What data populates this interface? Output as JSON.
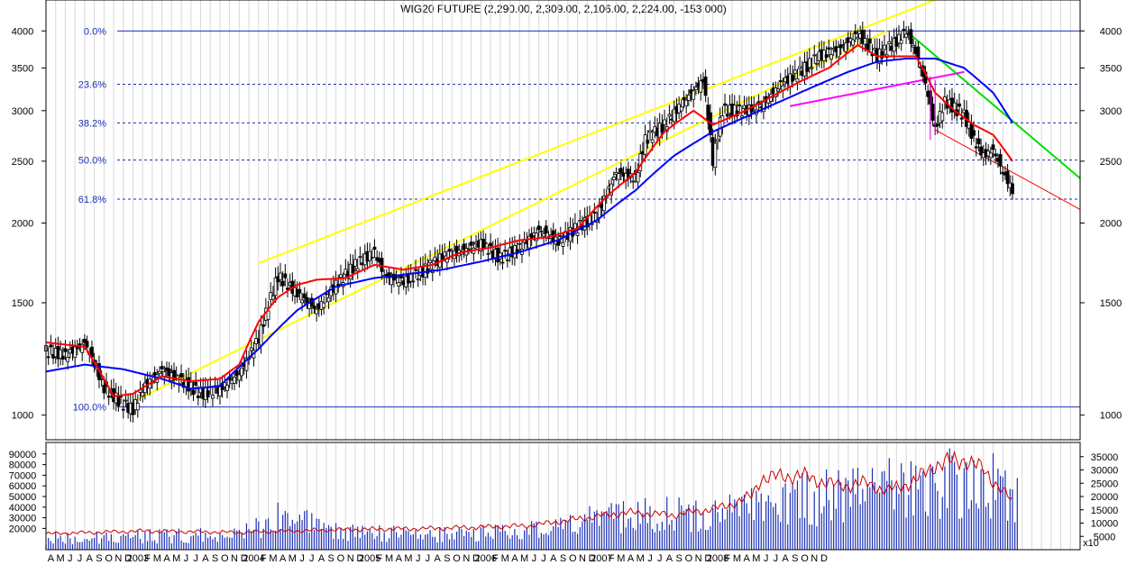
{
  "chart_data": {
    "type": "candlestick",
    "title": "WIG20 FUTURE (2,290.00, 2,309.00, 2,106.00, 2,224.00, -153.000)",
    "price_axis": {
      "scale": "log",
      "ylim": [
        930,
        4400
      ],
      "ticks": [
        "4000",
        "3500",
        "3000",
        "2500",
        "2000",
        "1500",
        "1000"
      ]
    },
    "volume_axis_left": {
      "ylim": [
        0,
        100000
      ],
      "ticks": [
        "90000",
        "80000",
        "70000",
        "60000",
        "50000",
        "40000",
        "30000",
        "20000"
      ]
    },
    "volume_axis_right": {
      "ylim": [
        0,
        40000
      ],
      "ticks": [
        "35000",
        "30000",
        "25000",
        "20000",
        "15000",
        "10000",
        "5000"
      ],
      "multiplier_label": "x10"
    },
    "fibonacci_levels": [
      {
        "label": "0.0%",
        "value": 4000,
        "style": "solid"
      },
      {
        "label": "23.6%",
        "value": 3300,
        "style": "dashed"
      },
      {
        "label": "38.2%",
        "value": 2870,
        "style": "dashed"
      },
      {
        "label": "50.0%",
        "value": 2510,
        "style": "dashed"
      },
      {
        "label": "61.8%",
        "value": 2180,
        "style": "dashed"
      },
      {
        "label": "100.0%",
        "value": 1030,
        "style": "solid"
      }
    ],
    "x_axis": {
      "months": [
        "A",
        "M",
        "J",
        "J",
        "A",
        "S",
        "O",
        "N",
        "D",
        "2003",
        "F",
        "M",
        "A",
        "M",
        "J",
        "J",
        "A",
        "S",
        "O",
        "N",
        "D",
        "2004",
        "F",
        "M",
        "A",
        "M",
        "J",
        "J",
        "A",
        "S",
        "O",
        "N",
        "D",
        "2005",
        "F",
        "M",
        "A",
        "M",
        "J",
        "J",
        "A",
        "S",
        "O",
        "N",
        "D",
        "2006",
        "F",
        "M",
        "A",
        "M",
        "J",
        "J",
        "A",
        "S",
        "O",
        "N",
        "D",
        "2007",
        "F",
        "M",
        "A",
        "M",
        "J",
        "J",
        "A",
        "S",
        "O",
        "N",
        "D",
        "2008",
        "F",
        "M",
        "A",
        "M",
        "J",
        "J",
        "A",
        "S",
        "O",
        "N",
        "D"
      ],
      "year_labels": [
        "2003",
        "2004",
        "2005",
        "2006",
        "2007",
        "2008"
      ]
    },
    "price_path": [
      [
        0,
        1260
      ],
      [
        2,
        1240
      ],
      [
        4,
        1300
      ],
      [
        6,
        1100
      ],
      [
        8,
        1040
      ],
      [
        9,
        1020
      ],
      [
        10,
        1100
      ],
      [
        12,
        1180
      ],
      [
        14,
        1130
      ],
      [
        16,
        1080
      ],
      [
        18,
        1100
      ],
      [
        20,
        1160
      ],
      [
        22,
        1320
      ],
      [
        24,
        1650
      ],
      [
        26,
        1550
      ],
      [
        28,
        1460
      ],
      [
        30,
        1600
      ],
      [
        32,
        1720
      ],
      [
        34,
        1800
      ],
      [
        35,
        1650
      ],
      [
        37,
        1620
      ],
      [
        39,
        1680
      ],
      [
        41,
        1770
      ],
      [
        43,
        1810
      ],
      [
        45,
        1860
      ],
      [
        47,
        1760
      ],
      [
        49,
        1830
      ],
      [
        51,
        1950
      ],
      [
        53,
        1870
      ],
      [
        55,
        1970
      ],
      [
        57,
        2050
      ],
      [
        59,
        2400
      ],
      [
        61,
        2350
      ],
      [
        62,
        2700
      ],
      [
        64,
        2850
      ],
      [
        66,
        3100
      ],
      [
        68,
        3350
      ],
      [
        69,
        2500
      ],
      [
        70,
        3000
      ],
      [
        72,
        3000
      ],
      [
        74,
        3050
      ],
      [
        76,
        3300
      ],
      [
        78,
        3450
      ],
      [
        80,
        3650
      ],
      [
        82,
        3750
      ],
      [
        84,
        3950
      ],
      [
        86,
        3650
      ],
      [
        88,
        3850
      ],
      [
        89,
        4000
      ],
      [
        90,
        3700
      ],
      [
        91,
        3300
      ],
      [
        92,
        2800
      ],
      [
        93,
        3100
      ],
      [
        95,
        2950
      ],
      [
        96,
        2700
      ],
      [
        97,
        2550
      ],
      [
        98,
        2600
      ],
      [
        99,
        2400
      ],
      [
        100,
        2250
      ]
    ],
    "ma_red": [
      [
        0,
        1300
      ],
      [
        4,
        1280
      ],
      [
        7,
        1070
      ],
      [
        9,
        1080
      ],
      [
        12,
        1150
      ],
      [
        15,
        1130
      ],
      [
        18,
        1140
      ],
      [
        20,
        1200
      ],
      [
        22,
        1400
      ],
      [
        24,
        1530
      ],
      [
        26,
        1600
      ],
      [
        28,
        1630
      ],
      [
        31,
        1640
      ],
      [
        34,
        1720
      ],
      [
        37,
        1690
      ],
      [
        40,
        1720
      ],
      [
        43,
        1800
      ],
      [
        46,
        1830
      ],
      [
        49,
        1880
      ],
      [
        52,
        1900
      ],
      [
        55,
        1960
      ],
      [
        58,
        2200
      ],
      [
        61,
        2400
      ],
      [
        64,
        2780
      ],
      [
        67,
        3000
      ],
      [
        69,
        2850
      ],
      [
        72,
        2980
      ],
      [
        75,
        3150
      ],
      [
        78,
        3330
      ],
      [
        81,
        3500
      ],
      [
        84,
        3800
      ],
      [
        86,
        3650
      ],
      [
        88,
        3650
      ],
      [
        90,
        3650
      ],
      [
        92,
        3200
      ],
      [
        94,
        3000
      ],
      [
        96,
        2850
      ],
      [
        98,
        2750
      ],
      [
        100,
        2500
      ]
    ],
    "ma_blue": [
      [
        0,
        1170
      ],
      [
        4,
        1200
      ],
      [
        8,
        1180
      ],
      [
        12,
        1140
      ],
      [
        15,
        1100
      ],
      [
        18,
        1110
      ],
      [
        22,
        1270
      ],
      [
        26,
        1460
      ],
      [
        30,
        1590
      ],
      [
        34,
        1640
      ],
      [
        37,
        1660
      ],
      [
        41,
        1690
      ],
      [
        45,
        1740
      ],
      [
        49,
        1800
      ],
      [
        53,
        1880
      ],
      [
        57,
        2020
      ],
      [
        61,
        2250
      ],
      [
        65,
        2550
      ],
      [
        69,
        2780
      ],
      [
        73,
        2960
      ],
      [
        77,
        3150
      ],
      [
        80,
        3300
      ],
      [
        83,
        3450
      ],
      [
        86,
        3580
      ],
      [
        89,
        3620
      ],
      [
        92,
        3620
      ],
      [
        95,
        3500
      ],
      [
        98,
        3200
      ],
      [
        100,
        2870
      ]
    ],
    "volume_bars_note": "blue bars, rising from ~15000 (2002) to ~50000-90000 (2007-2008)",
    "volume_levels": [
      [
        0,
        12000
      ],
      [
        10,
        14000
      ],
      [
        20,
        16000
      ],
      [
        22,
        25000
      ],
      [
        24,
        35000
      ],
      [
        30,
        18000
      ],
      [
        40,
        15000
      ],
      [
        50,
        20000
      ],
      [
        56,
        30000
      ],
      [
        62,
        40000
      ],
      [
        68,
        35000
      ],
      [
        75,
        45000
      ],
      [
        80,
        55000
      ],
      [
        85,
        60000
      ],
      [
        90,
        65000
      ],
      [
        94,
        70000
      ],
      [
        97,
        60000
      ],
      [
        99,
        75000
      ],
      [
        100,
        50000
      ]
    ],
    "open_interest": [
      [
        0,
        6000
      ],
      [
        10,
        7000
      ],
      [
        20,
        6500
      ],
      [
        30,
        7500
      ],
      [
        40,
        8000
      ],
      [
        50,
        9000
      ],
      [
        56,
        12000
      ],
      [
        60,
        14000
      ],
      [
        65,
        13000
      ],
      [
        70,
        16000
      ],
      [
        73,
        20000
      ],
      [
        74,
        27000
      ],
      [
        78,
        28000
      ],
      [
        80,
        26000
      ],
      [
        82,
        24000
      ],
      [
        85,
        25000
      ],
      [
        87,
        22000
      ],
      [
        90,
        26000
      ],
      [
        92,
        32000
      ],
      [
        95,
        34000
      ],
      [
        97,
        30000
      ],
      [
        99,
        22000
      ],
      [
        100,
        18000
      ]
    ],
    "trendlines": [
      {
        "color": "#ffff00",
        "from": [
          9,
          1050
        ],
        "to": [
          87,
          4000
        ]
      },
      {
        "color": "#ffff00",
        "from": [
          22,
          1730
        ],
        "to": [
          92,
          4500
        ]
      },
      {
        "color": "#00dd00",
        "from": [
          89,
          4000
        ],
        "to": [
          107,
          2350
        ]
      },
      {
        "color": "#ff00ff",
        "from": [
          77,
          3050
        ],
        "to": [
          95,
          3450
        ]
      },
      {
        "color": "#ff0000",
        "from": [
          92,
          2800
        ],
        "to": [
          107,
          2100
        ]
      }
    ],
    "colors": {
      "candle": "#000000",
      "ma_short": "#ff0000",
      "ma_long": "#0000ff",
      "fib": "#1b2fb5",
      "volume": "#1b2fb5",
      "open_interest": "#cc0000"
    }
  }
}
